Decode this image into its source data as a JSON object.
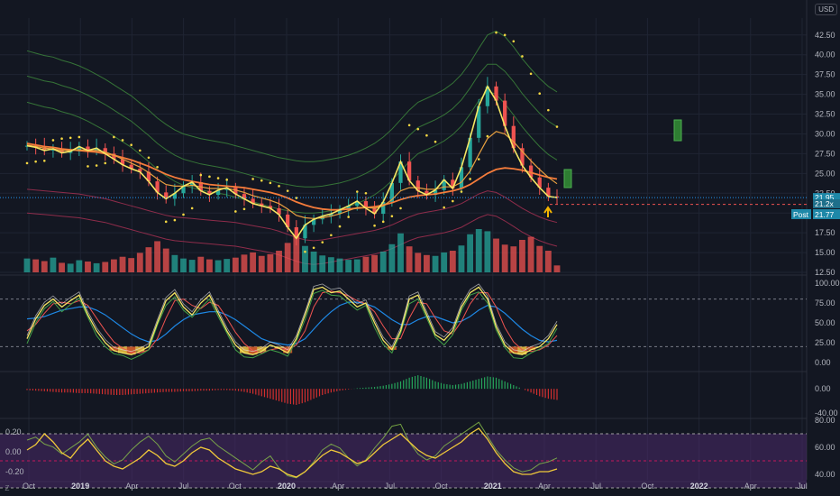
{
  "currency_button": "USD",
  "corner_button": "Z",
  "price_tags": {
    "last": "21.95",
    "second": "21.2x",
    "post_label": "Post",
    "post_value": "21.77"
  },
  "colors": {
    "background": "#131722",
    "up": "#26a69a",
    "down": "#ef5350",
    "upper_band": "#3a7d3a",
    "lower_band": "#9b2f4f",
    "yellow": "#f5e663",
    "orange": "#f57c3b",
    "blue": "#2962ff"
  },
  "chart_data": [
    {
      "type": "line",
      "name": "price-pane",
      "y_ticks": [
        "42.50",
        "40.00",
        "37.50",
        "35.00",
        "32.50",
        "30.00",
        "27.50",
        "25.00",
        "22.50",
        "20.00",
        "17.50",
        "15.00",
        "12.50"
      ],
      "ylim": [
        12.5,
        43.5
      ],
      "x_ticks": [
        "Oct",
        "2019",
        "Apr",
        "Jul",
        "Oct",
        "2020",
        "Apr",
        "Jul",
        "Oct",
        "2021",
        "Apr",
        "Jul",
        "Oct",
        "2022",
        "Apr",
        "Jul"
      ],
      "x_ticks_bold": [
        "2019",
        "2020",
        "2021",
        "2022"
      ],
      "series": [
        {
          "role": "close",
          "values": [
            28.5,
            28.3,
            27.9,
            28.1,
            27.6,
            27.8,
            28.4,
            27.9,
            28.2,
            27.5,
            26.8,
            26.1,
            25.6,
            25.2,
            24.0,
            22.6,
            21.8,
            22.5,
            23.4,
            23.9,
            22.8,
            22.3,
            22.9,
            23.2,
            22.4,
            21.8,
            21.2,
            20.9,
            20.6,
            19.8,
            18.2,
            16.8,
            18.5,
            19.2,
            19.6,
            19.9,
            20.4,
            20.9,
            21.5,
            20.6,
            19.9,
            21.4,
            23.8,
            26.5,
            24.1,
            22.8,
            22.3,
            22.9,
            24.2,
            23.1,
            25.8,
            29.5,
            33.5,
            36.0,
            34.2,
            31.0,
            28.2,
            26.0,
            24.5,
            23.2,
            22.1,
            21.95
          ]
        },
        {
          "role": "upper-band-outer",
          "values": [
            40.5,
            40.2,
            39.9,
            39.7,
            39.3,
            39.0,
            38.6,
            38.1,
            37.5,
            36.9,
            36.2,
            35.5,
            34.8,
            33.9,
            33.0,
            32.0,
            31.2,
            30.5,
            30.0,
            29.7,
            29.4,
            29.2,
            29.0,
            28.8,
            28.5,
            28.2,
            27.9,
            27.6,
            27.3,
            27.0,
            26.8,
            26.6,
            26.5,
            26.5,
            26.6,
            26.8,
            27.0,
            27.3,
            27.7,
            28.2,
            28.8,
            29.6,
            30.6,
            31.8,
            33.0,
            34.0,
            34.5,
            35.0,
            35.6,
            36.4,
            37.5,
            39.0,
            40.8,
            42.5,
            43.0,
            42.3,
            41.0,
            39.5,
            38.2,
            37.0,
            36.0,
            35.3
          ]
        },
        {
          "role": "upper-band-mid",
          "values": [
            37.3,
            37.0,
            36.7,
            36.5,
            36.1,
            35.8,
            35.4,
            34.9,
            34.3,
            33.7,
            33.0,
            32.3,
            31.6,
            30.7,
            29.8,
            28.8,
            28.0,
            27.3,
            26.8,
            26.5,
            26.2,
            26.0,
            25.8,
            25.6,
            25.3,
            25.0,
            24.7,
            24.4,
            24.1,
            23.8,
            23.6,
            23.4,
            23.3,
            23.3,
            23.4,
            23.6,
            23.8,
            24.1,
            24.5,
            25.0,
            25.6,
            26.4,
            27.4,
            28.6,
            29.8,
            30.8,
            31.3,
            31.8,
            32.4,
            33.2,
            34.3,
            35.8,
            37.5,
            38.8,
            38.8,
            37.9,
            36.6,
            35.1,
            33.8,
            32.6,
            31.6,
            30.9
          ]
        },
        {
          "role": "upper-band-inner",
          "values": [
            34.0,
            33.7,
            33.4,
            33.2,
            32.8,
            32.5,
            32.1,
            31.6,
            31.0,
            30.4,
            29.7,
            29.0,
            28.3,
            27.4,
            26.5,
            25.5,
            24.7,
            24.0,
            23.5,
            23.2,
            22.9,
            22.7,
            22.5,
            22.3,
            22.0,
            21.7,
            21.4,
            21.1,
            20.8,
            20.5,
            20.3,
            20.1,
            20.0,
            20.0,
            20.1,
            20.3,
            20.5,
            20.8,
            21.2,
            21.7,
            22.3,
            23.1,
            24.1,
            25.3,
            26.5,
            27.5,
            28.0,
            28.5,
            29.1,
            29.9,
            31.0,
            32.5,
            34.2,
            35.4,
            35.0,
            33.8,
            32.4,
            30.9,
            29.6,
            28.4,
            27.4,
            26.7
          ]
        },
        {
          "role": "lower-band-inner",
          "values": [
            23.0,
            22.9,
            22.8,
            22.7,
            22.6,
            22.5,
            22.4,
            22.2,
            22.0,
            21.8,
            21.5,
            21.2,
            20.9,
            20.6,
            20.3,
            20.0,
            19.7,
            19.5,
            19.4,
            19.3,
            19.2,
            19.1,
            19.0,
            18.9,
            18.8,
            18.6,
            18.4,
            18.2,
            18.0,
            17.7,
            17.3,
            16.9,
            16.6,
            16.5,
            16.6,
            16.8,
            17.0,
            17.2,
            17.4,
            17.6,
            17.8,
            18.1,
            18.5,
            19.0,
            19.5,
            19.9,
            20.1,
            20.3,
            20.5,
            20.8,
            21.2,
            21.8,
            22.4,
            22.8,
            22.6,
            22.0,
            21.3,
            20.6,
            20.0,
            19.5,
            19.1,
            18.8
          ]
        },
        {
          "role": "lower-band-outer",
          "values": [
            20.0,
            19.9,
            19.8,
            19.7,
            19.6,
            19.5,
            19.4,
            19.2,
            19.0,
            18.8,
            18.5,
            18.2,
            17.9,
            17.6,
            17.3,
            17.0,
            16.7,
            16.5,
            16.4,
            16.3,
            16.2,
            16.1,
            16.0,
            15.9,
            15.8,
            15.6,
            15.4,
            15.2,
            15.0,
            14.7,
            14.3,
            13.9,
            13.6,
            13.5,
            13.6,
            13.8,
            14.0,
            14.2,
            14.4,
            14.6,
            14.8,
            15.1,
            15.5,
            16.0,
            16.5,
            16.9,
            17.1,
            17.3,
            17.5,
            17.8,
            18.2,
            18.8,
            19.4,
            19.8,
            19.6,
            19.0,
            18.3,
            17.6,
            17.0,
            16.5,
            16.1,
            15.8
          ]
        },
        {
          "role": "ma-slow",
          "values": [
            28.8,
            28.6,
            28.4,
            28.3,
            28.1,
            28.0,
            27.9,
            27.8,
            27.7,
            27.5,
            27.3,
            27.0,
            26.7,
            26.3,
            25.9,
            25.4,
            24.9,
            24.5,
            24.2,
            24.0,
            23.8,
            23.6,
            23.5,
            23.4,
            23.3,
            23.2,
            23.0,
            22.8,
            22.6,
            22.3,
            21.9,
            21.4,
            21.0,
            20.7,
            20.5,
            20.4,
            20.4,
            20.5,
            20.6,
            20.7,
            20.8,
            21.0,
            21.3,
            21.7,
            22.0,
            22.2,
            22.3,
            22.4,
            22.6,
            22.8,
            23.1,
            23.6,
            24.3,
            25.0,
            25.5,
            25.7,
            25.6,
            25.4,
            25.1,
            24.8,
            24.5,
            24.3
          ]
        },
        {
          "role": "ma-fast",
          "values": [
            28.6,
            28.4,
            28.2,
            28.1,
            27.9,
            27.9,
            28.0,
            27.9,
            27.9,
            27.7,
            27.3,
            26.8,
            26.3,
            25.8,
            25.1,
            24.3,
            23.6,
            23.4,
            23.4,
            23.5,
            23.3,
            23.1,
            23.1,
            23.1,
            22.9,
            22.6,
            22.2,
            21.9,
            21.6,
            21.2,
            20.5,
            19.7,
            19.4,
            19.3,
            19.4,
            19.6,
            19.9,
            20.3,
            20.7,
            20.7,
            20.6,
            20.9,
            21.7,
            22.8,
            23.2,
            23.2,
            23.0,
            23.0,
            23.3,
            23.3,
            23.9,
            25.3,
            27.4,
            29.4,
            30.3,
            30.0,
            29.0,
            27.8,
            26.6,
            25.5,
            24.5,
            23.7
          ]
        }
      ],
      "psar_dots": [
        26.3,
        26.5,
        26.6,
        29.2,
        29.4,
        29.5,
        29.6,
        25.9,
        26.0,
        26.3,
        29.6,
        29.2,
        28.6,
        27.9,
        27.0,
        25.8,
        18.9,
        19.1,
        19.8,
        20.6,
        24.8,
        24.6,
        24.4,
        24.2,
        20.2,
        20.5,
        24.3,
        24.1,
        23.8,
        23.4,
        22.8,
        21.9,
        15.1,
        15.6,
        16.3,
        17.2,
        18.3,
        19.5,
        22.7,
        22.5,
        18.4,
        18.9,
        19.6,
        20.6,
        31.1,
        30.6,
        29.8,
        29.0,
        20.7,
        21.5,
        22.7,
        24.3,
        26.8,
        29.7,
        42.8,
        42.5,
        41.7,
        39.8,
        37.6,
        35.1,
        33.0,
        30.9
      ],
      "volume": [
        3.2,
        3.0,
        2.6,
        3.4,
        2.2,
        2.0,
        2.8,
        2.5,
        2.1,
        2.4,
        3.0,
        3.6,
        3.3,
        4.5,
        5.8,
        7.2,
        5.5,
        4.0,
        3.2,
        2.9,
        3.6,
        3.0,
        2.8,
        3.1,
        3.4,
        4.1,
        4.6,
        3.8,
        4.2,
        5.0,
        6.8,
        8.5,
        6.1,
        4.8,
        3.9,
        3.5,
        3.2,
        2.9,
        3.0,
        3.6,
        4.0,
        4.8,
        6.5,
        9.0,
        6.0,
        4.5,
        4.0,
        3.8,
        4.6,
        5.0,
        6.2,
        8.8,
        10.0,
        9.5,
        7.8,
        6.4,
        6.0,
        7.5,
        8.2,
        6.1,
        5.0,
        1.6
      ]
    },
    {
      "type": "line",
      "name": "stochastic-pane",
      "y_ticks": [
        "100.00",
        "75.00",
        "50.00",
        "25.00",
        "0.00"
      ],
      "ylim": [
        0,
        100
      ],
      "levels": [
        80,
        20
      ],
      "series": [
        {
          "role": "k",
          "values": [
            30,
            55,
            72,
            80,
            70,
            78,
            85,
            60,
            40,
            25,
            15,
            12,
            10,
            14,
            20,
            50,
            78,
            88,
            70,
            60,
            75,
            85,
            62,
            40,
            22,
            12,
            10,
            14,
            22,
            18,
            12,
            30,
            60,
            92,
            95,
            88,
            90,
            80,
            70,
            75,
            50,
            28,
            16,
            40,
            80,
            85,
            60,
            35,
            28,
            40,
            70,
            88,
            95,
            80,
            45,
            22,
            12,
            10,
            16,
            20,
            30,
            48
          ]
        },
        {
          "role": "d",
          "values": [
            40,
            48,
            62,
            74,
            76,
            74,
            78,
            72,
            56,
            40,
            26,
            18,
            13,
            12,
            16,
            30,
            56,
            78,
            80,
            72,
            68,
            76,
            72,
            56,
            38,
            24,
            15,
            12,
            16,
            18,
            16,
            22,
            40,
            70,
            88,
            90,
            88,
            84,
            78,
            74,
            64,
            46,
            30,
            30,
            56,
            76,
            74,
            56,
            40,
            36,
            52,
            74,
            88,
            88,
            70,
            44,
            26,
            16,
            14,
            16,
            22,
            34
          ]
        },
        {
          "role": "slow",
          "values": [
            55,
            56,
            58,
            62,
            66,
            68,
            70,
            70,
            66,
            60,
            52,
            44,
            36,
            30,
            26,
            28,
            36,
            46,
            54,
            60,
            62,
            64,
            64,
            60,
            54,
            46,
            38,
            30,
            26,
            24,
            22,
            24,
            30,
            42,
            54,
            64,
            72,
            76,
            76,
            74,
            70,
            62,
            54,
            48,
            48,
            54,
            58,
            58,
            54,
            50,
            52,
            58,
            66,
            72,
            70,
            62,
            52,
            42,
            34,
            28,
            26,
            28
          ]
        }
      ]
    },
    {
      "type": "bar",
      "name": "histogram-pane",
      "y_ticks": [
        "0.00",
        "-40.00"
      ],
      "ylim": [
        -45,
        25
      ],
      "values": [
        -2,
        -3,
        -4,
        -5,
        -6,
        -6,
        -7,
        -7,
        -8,
        -9,
        -10,
        -10,
        -9,
        -8,
        -7,
        -6,
        -5,
        -5,
        -4,
        -4,
        -3,
        -3,
        -2,
        -2,
        -3,
        -5,
        -8,
        -12,
        -16,
        -20,
        -24,
        -26,
        -22,
        -16,
        -10,
        -6,
        -3,
        -1,
        1,
        2,
        3,
        5,
        8,
        12,
        18,
        22,
        18,
        12,
        8,
        6,
        8,
        12,
        16,
        20,
        18,
        12,
        6,
        0,
        -6,
        -12,
        -16,
        -18
      ]
    },
    {
      "type": "line",
      "name": "oscillator-pane",
      "y_ticks_left": [
        "0.20",
        "0.00",
        "-0.20"
      ],
      "y_ticks_right": [
        "80.00",
        "60.00",
        "40.00"
      ],
      "ylim_left": [
        -0.28,
        0.32
      ],
      "ylim_right": [
        36,
        80
      ],
      "series": [
        {
          "role": "correlation",
          "values": [
            0.12,
            0.15,
            0.08,
            0.05,
            -0.02,
            0.04,
            0.1,
            0.18,
            0.05,
            -0.05,
            -0.12,
            -0.08,
            0.02,
            0.1,
            0.16,
            0.08,
            -0.04,
            -0.1,
            -0.02,
            0.06,
            0.12,
            0.14,
            0.06,
            0.0,
            -0.06,
            -0.12,
            -0.18,
            -0.1,
            -0.04,
            -0.16,
            -0.24,
            -0.26,
            -0.2,
            -0.1,
            0.02,
            0.08,
            0.04,
            -0.06,
            -0.14,
            -0.08,
            0.04,
            0.14,
            0.26,
            0.28,
            0.1,
            -0.02,
            -0.08,
            -0.04,
            0.06,
            0.12,
            0.18,
            0.24,
            0.3,
            0.16,
            0.02,
            -0.08,
            -0.16,
            -0.2,
            -0.18,
            -0.12,
            -0.1,
            -0.06
          ]
        },
        {
          "role": "rsi",
          "values": [
            58,
            62,
            70,
            64,
            56,
            52,
            60,
            66,
            58,
            50,
            46,
            44,
            48,
            52,
            58,
            54,
            48,
            46,
            50,
            56,
            60,
            58,
            52,
            48,
            44,
            42,
            40,
            42,
            46,
            44,
            40,
            38,
            42,
            48,
            54,
            58,
            56,
            52,
            48,
            50,
            56,
            62,
            66,
            70,
            64,
            58,
            54,
            52,
            56,
            60,
            64,
            70,
            74,
            66,
            56,
            48,
            42,
            40,
            40,
            42,
            42,
            44
          ]
        }
      ]
    }
  ]
}
